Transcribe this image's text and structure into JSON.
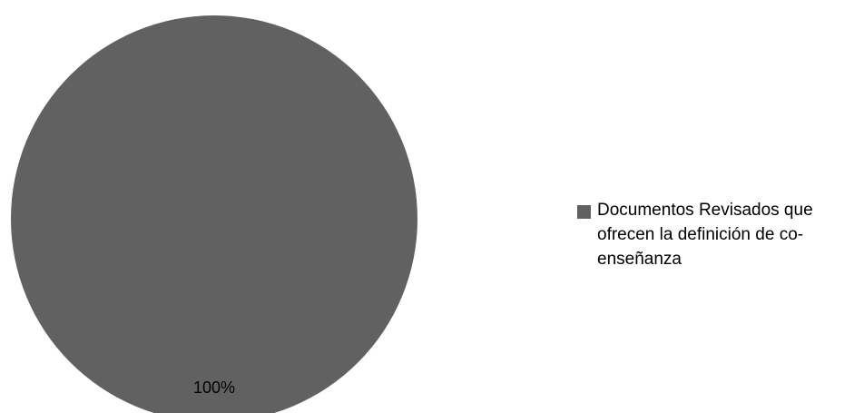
{
  "chart_data": {
    "type": "pie",
    "title": "",
    "categories": [
      "Documentos Revisados que ofrecen la definición de co-enseñanza"
    ],
    "values": [
      100
    ],
    "data_labels": [
      "100%"
    ],
    "colors": [
      "#616161"
    ],
    "legend": "right",
    "series": [
      {
        "values": [
          100
        ]
      }
    ]
  }
}
